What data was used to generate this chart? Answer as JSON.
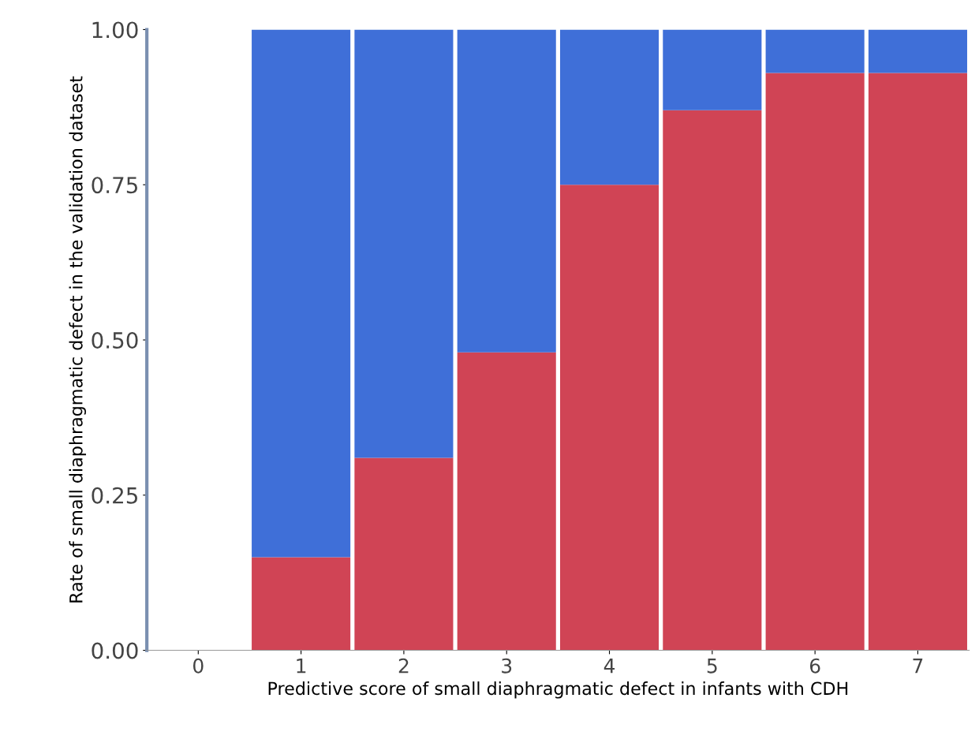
{
  "chart_data": {
    "type": "bar",
    "stacked": true,
    "xlabel": "Predictive score of small diaphragmatic defect in infants with CDH",
    "ylabel": "Rate of small diaphragmatic defect in the validation dataset",
    "categories": [
      "0",
      "1",
      "2",
      "3",
      "4",
      "5",
      "6",
      "7"
    ],
    "series": [
      {
        "color": "#d04455",
        "values": [
          null,
          0.15,
          0.31,
          0.48,
          0.75,
          0.87,
          0.93,
          0.93
        ]
      },
      {
        "color": "#3f6fd8",
        "values": [
          null,
          0.85,
          0.69,
          0.52,
          0.25,
          0.13,
          0.07,
          0.07
        ]
      }
    ],
    "ylim": [
      0,
      1
    ],
    "yticks": [
      {
        "value": 0,
        "label": "0.00"
      },
      {
        "value": 0.25,
        "label": "0.25"
      },
      {
        "value": 0.5,
        "label": "0.50"
      },
      {
        "value": 0.75,
        "label": "0.75"
      },
      {
        "value": 1,
        "label": "1.00"
      }
    ],
    "grid": false,
    "legend": false
  }
}
